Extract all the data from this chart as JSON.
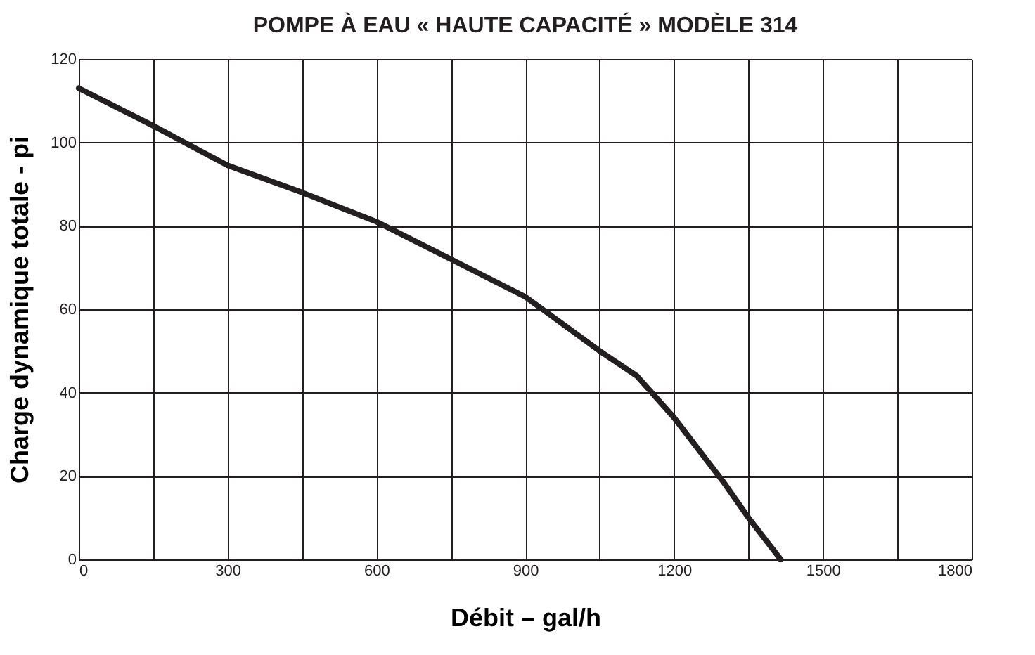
{
  "chart_data": {
    "type": "line",
    "title": "POMPE À EAU « HAUTE CAPACITÉ » MODÈLE 314",
    "xlabel": "Débit – gal/h",
    "ylabel": "Charge dynamique totale - pi",
    "x": [
      0,
      150,
      300,
      450,
      600,
      750,
      900,
      1050,
      1125,
      1200,
      1300,
      1350,
      1415
    ],
    "series": [
      {
        "color": "#231f20",
        "values": [
          113,
          104,
          94.5,
          88,
          81,
          72,
          63,
          50,
          44,
          34,
          18.5,
          10,
          0
        ]
      }
    ],
    "xlim": [
      0,
      1800
    ],
    "ylim": [
      0,
      120
    ],
    "xticks": [
      0,
      {
        "value": 150,
        "label": null
      },
      300,
      {
        "value": 450,
        "label": null
      },
      600,
      {
        "value": 750,
        "label": null
      },
      900,
      {
        "value": 1050,
        "label": null
      },
      1200,
      {
        "value": 1350,
        "label": null
      },
      1500,
      {
        "value": 1650,
        "label": null
      },
      1800
    ],
    "yticks": [
      0,
      20,
      40,
      60,
      80,
      100,
      120
    ],
    "grid": true,
    "marker": "none",
    "line_style": "solid"
  }
}
